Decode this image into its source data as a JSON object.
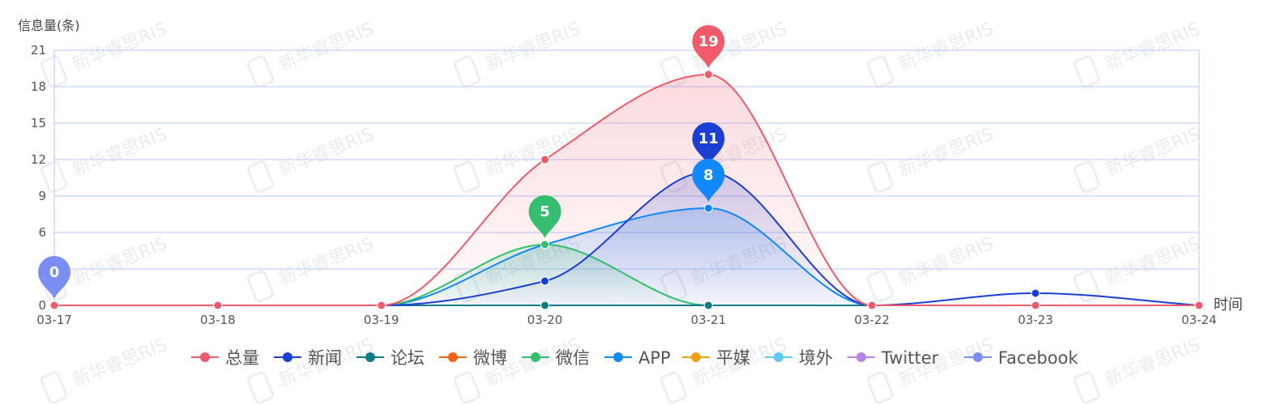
{
  "chart_data": {
    "type": "line",
    "ylabel": "信息量(条)",
    "xlabel": "时间",
    "categories": [
      "03-17",
      "03-18",
      "03-19",
      "03-20",
      "03-21",
      "03-22",
      "03-23",
      "03-24"
    ],
    "ylim": [
      0,
      21
    ],
    "yticks": [
      0,
      3,
      6,
      9,
      12,
      15,
      18,
      21
    ],
    "ytick_labels": [
      "0",
      "",
      "6",
      "9",
      "12",
      "15",
      "18",
      "21"
    ],
    "grid": true,
    "legend_position": "bottom",
    "watermark": "新华睿思RIS",
    "series": [
      {
        "name": "总量",
        "color": "#f05a6a",
        "values": [
          0,
          0,
          0,
          12,
          19,
          0,
          0,
          0
        ],
        "fill": true,
        "pin": {
          "label": "19",
          "index": 4
        }
      },
      {
        "name": "新闻",
        "color": "#1a3fd4",
        "values": [
          0,
          0,
          0,
          2,
          11,
          0,
          1,
          0
        ],
        "fill": true,
        "pin": {
          "label": "11",
          "index": 4
        }
      },
      {
        "name": "论坛",
        "color": "#0e7c86",
        "values": [
          0,
          0,
          0,
          0,
          0,
          0,
          0,
          0
        ],
        "fill": false
      },
      {
        "name": "微博",
        "color": "#f06414",
        "values": [
          0,
          0,
          0,
          0,
          0,
          0,
          0,
          0
        ],
        "fill": false
      },
      {
        "name": "微信",
        "color": "#34be6e",
        "values": [
          0,
          0,
          0,
          5,
          0,
          0,
          0,
          0
        ],
        "fill": true,
        "pin": {
          "label": "5",
          "index": 3
        }
      },
      {
        "name": "APP",
        "color": "#1089ff",
        "values": [
          0,
          0,
          0,
          5,
          8,
          0,
          0,
          0
        ],
        "fill": true,
        "pin": {
          "label": "8",
          "index": 4
        }
      },
      {
        "name": "平媒",
        "color": "#f0a010",
        "values": [
          0,
          0,
          0,
          0,
          0,
          0,
          0,
          0
        ],
        "fill": false
      },
      {
        "name": "境外",
        "color": "#5ecbf5",
        "values": [
          0,
          0,
          0,
          0,
          0,
          0,
          0,
          0
        ],
        "fill": false
      },
      {
        "name": "Twitter",
        "color": "#b785e8",
        "values": [
          0,
          0,
          0,
          0,
          0,
          0,
          0,
          0
        ],
        "fill": false
      },
      {
        "name": "Facebook",
        "color": "#7a8ef5",
        "values": [
          0,
          0,
          0,
          0,
          0,
          0,
          0,
          0
        ],
        "fill": false,
        "pin": {
          "label": "0",
          "index": 0
        }
      }
    ]
  }
}
